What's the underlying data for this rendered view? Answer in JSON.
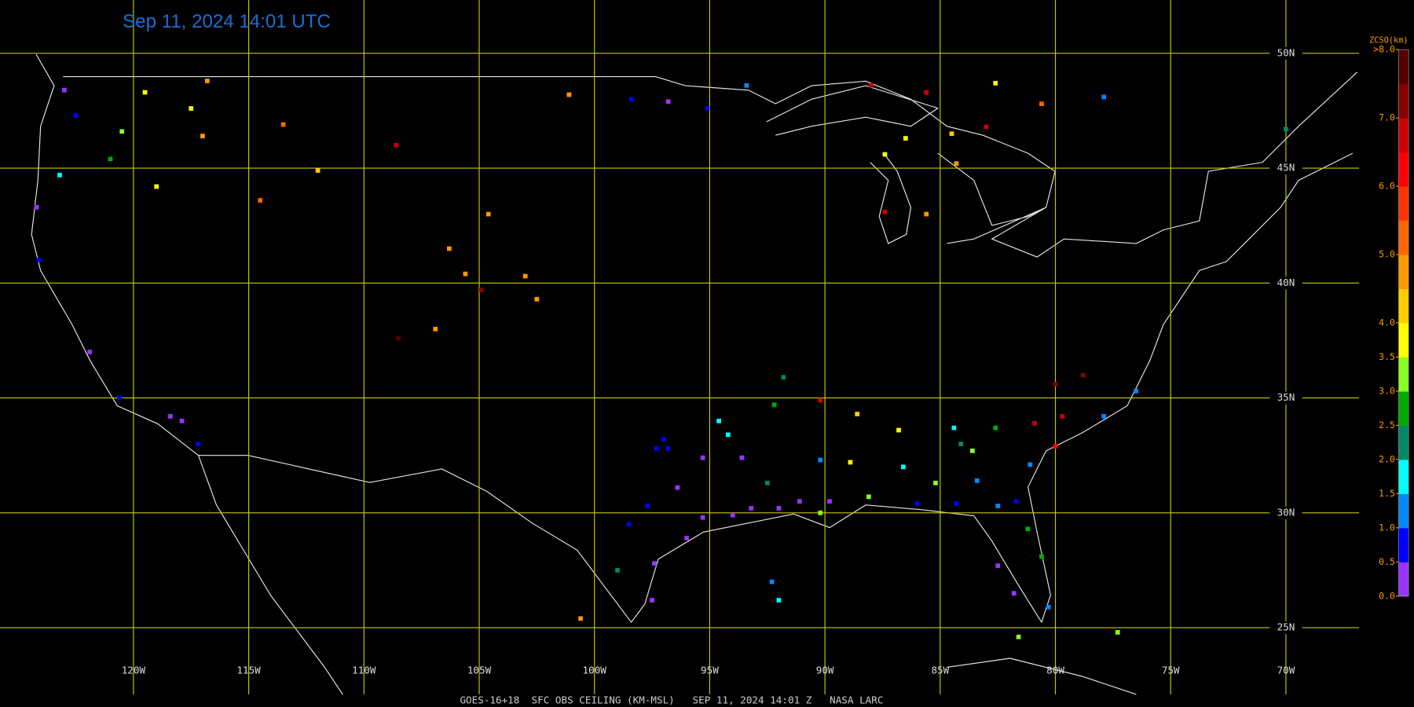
{
  "title": "Sep 11, 2024 14:01 UTC",
  "footer": "GOES-16+18  SFC OBS CEILING (KM-MSL)   SEP 11, 2024 14:01 Z   NASA LARC",
  "map": {
    "lonlim": [
      -125.79,
      -66.83
    ],
    "latlim": [
      21.55,
      52.32
    ],
    "lon_lines": [
      {
        "value": -120,
        "label": "120W"
      },
      {
        "value": -115,
        "label": "115W"
      },
      {
        "value": -110,
        "label": "110W"
      },
      {
        "value": -105,
        "label": "105W"
      },
      {
        "value": -100,
        "label": "100W"
      },
      {
        "value": -95,
        "label": "95W"
      },
      {
        "value": -90,
        "label": "90W"
      },
      {
        "value": -85,
        "label": "85W"
      },
      {
        "value": -80,
        "label": "80W"
      },
      {
        "value": -75,
        "label": "75W"
      },
      {
        "value": -70,
        "label": "70W"
      }
    ],
    "lat_lines": [
      {
        "value": 50,
        "label": "50N"
      },
      {
        "value": 45,
        "label": "45N"
      },
      {
        "value": 40,
        "label": "40N"
      },
      {
        "value": 35,
        "label": "35N"
      },
      {
        "value": 30,
        "label": "30N"
      },
      {
        "value": 25,
        "label": "25N"
      }
    ],
    "grid_color": "#c8c800"
  },
  "legend": {
    "title": "ZCSO(km)",
    "lim": [
      0,
      8
    ],
    "ticks": [
      {
        "value": 0,
        "label": "0.0"
      },
      {
        "value": 0.5,
        "label": "0.5"
      },
      {
        "value": 1,
        "label": "1.0"
      },
      {
        "value": 1.5,
        "label": "1.5"
      },
      {
        "value": 2,
        "label": "2.0"
      },
      {
        "value": 2.5,
        "label": "2.5"
      },
      {
        "value": 3,
        "label": "3.0"
      },
      {
        "value": 3.5,
        "label": "3.5"
      },
      {
        "value": 4,
        "label": "4.0"
      },
      {
        "value": 5,
        "label": "5.0"
      },
      {
        "value": 6,
        "label": "6.0"
      },
      {
        "value": 7,
        "label": "7.0"
      },
      {
        "value": 8,
        "label": ">8.0"
      }
    ],
    "colors": [
      "#9933ff",
      "#0000ff",
      "#0088ff",
      "#00ffff",
      "#008866",
      "#00aa00",
      "#88ff22",
      "#ffff00",
      "#ffcc00",
      "#ff9900",
      "#ff6600",
      "#ff3300",
      "#ff0000",
      "#cc0000",
      "#880000",
      "#550000"
    ]
  },
  "stations": [
    [
      -123.0,
      48.4,
      0.3
    ],
    [
      -122.5,
      47.3,
      0.8
    ],
    [
      -123.2,
      44.7,
      1.7
    ],
    [
      -120.5,
      46.6,
      3.2
    ],
    [
      -119.5,
      48.3,
      3.7
    ],
    [
      -117.5,
      47.6,
      3.8
    ],
    [
      -116.8,
      48.8,
      4.6
    ],
    [
      -121.0,
      45.4,
      2.8
    ],
    [
      -119.0,
      44.2,
      3.8
    ],
    [
      -124.2,
      43.3,
      0.3
    ],
    [
      -124.1,
      41.0,
      0.8
    ],
    [
      -117.0,
      46.4,
      4.7
    ],
    [
      -113.5,
      46.9,
      5.2
    ],
    [
      -114.5,
      43.6,
      5.2
    ],
    [
      -112.0,
      44.9,
      4.3
    ],
    [
      -108.6,
      46.0,
      6.7
    ],
    [
      -104.6,
      43.0,
      4.7
    ],
    [
      -106.3,
      41.5,
      4.7
    ],
    [
      -105.6,
      40.4,
      4.7
    ],
    [
      -106.9,
      38.0,
      4.6
    ],
    [
      -104.9,
      39.7,
      7.3
    ],
    [
      -103.0,
      40.3,
      4.6
    ],
    [
      -102.5,
      39.3,
      4.6
    ],
    [
      -108.5,
      37.6,
      7.8
    ],
    [
      -101.1,
      48.2,
      4.7
    ],
    [
      -98.4,
      48.0,
      0.8
    ],
    [
      -96.8,
      47.9,
      0.3
    ],
    [
      -95.1,
      47.6,
      0.8
    ],
    [
      -93.4,
      48.6,
      1.3
    ],
    [
      -88.0,
      48.6,
      6.8
    ],
    [
      -85.6,
      48.3,
      6.8
    ],
    [
      -84.5,
      46.5,
      4.3
    ],
    [
      -86.5,
      46.3,
      3.7
    ],
    [
      -84.3,
      45.2,
      4.6
    ],
    [
      -83.0,
      46.8,
      6.8
    ],
    [
      -80.6,
      47.8,
      5.3
    ],
    [
      -77.9,
      48.1,
      1.3
    ],
    [
      -87.4,
      43.1,
      6.8
    ],
    [
      -85.6,
      43.0,
      4.6
    ],
    [
      -87.4,
      45.6,
      3.7
    ],
    [
      -82.6,
      48.7,
      3.8
    ],
    [
      -70.0,
      46.7,
      2.3
    ],
    [
      -121.9,
      37.0,
      0.3
    ],
    [
      -120.6,
      35.0,
      0.8
    ],
    [
      -117.9,
      34.0,
      0.3
    ],
    [
      -117.2,
      33.0,
      0.8
    ],
    [
      -118.4,
      34.2,
      0.3
    ],
    [
      -97.3,
      32.8,
      0.8
    ],
    [
      -96.8,
      32.8,
      0.7
    ],
    [
      -97.0,
      33.2,
      0.8
    ],
    [
      -95.3,
      32.4,
      0.3
    ],
    [
      -96.4,
      31.1,
      0.3
    ],
    [
      -97.7,
      30.3,
      0.8
    ],
    [
      -98.5,
      29.5,
      0.8
    ],
    [
      -95.3,
      29.8,
      0.3
    ],
    [
      -94.0,
      29.9,
      0.3
    ],
    [
      -96.0,
      28.9,
      0.3
    ],
    [
      -97.4,
      27.8,
      0.3
    ],
    [
      -97.5,
      26.2,
      0.3
    ],
    [
      -99.0,
      27.5,
      2.3
    ],
    [
      -94.6,
      34.0,
      1.7
    ],
    [
      -94.2,
      33.4,
      1.7
    ],
    [
      -93.6,
      32.4,
      0.3
    ],
    [
      -92.0,
      30.2,
      0.3
    ],
    [
      -91.1,
      30.5,
      0.3
    ],
    [
      -90.2,
      30.0,
      3.3
    ],
    [
      -89.8,
      30.5,
      0.3
    ],
    [
      -90.2,
      32.3,
      1.3
    ],
    [
      -88.9,
      32.2,
      3.7
    ],
    [
      -88.1,
      30.7,
      3.2
    ],
    [
      -86.6,
      32.0,
      1.7
    ],
    [
      -86.0,
      30.4,
      0.8
    ],
    [
      -85.2,
      31.3,
      3.3
    ],
    [
      -84.3,
      30.4,
      0.8
    ],
    [
      -83.4,
      31.4,
      1.3
    ],
    [
      -82.5,
      30.3,
      1.3
    ],
    [
      -81.7,
      30.5,
      0.8
    ],
    [
      -81.1,
      32.1,
      1.3
    ],
    [
      -81.2,
      29.3,
      2.7
    ],
    [
      -82.5,
      27.7,
      0.3
    ],
    [
      -81.8,
      26.5,
      0.3
    ],
    [
      -80.6,
      28.1,
      2.7
    ],
    [
      -80.3,
      25.9,
      1.3
    ],
    [
      -81.6,
      24.6,
      3.2
    ],
    [
      -77.3,
      24.8,
      3.3
    ],
    [
      -80.9,
      33.9,
      6.7
    ],
    [
      -80.0,
      32.9,
      6.3
    ],
    [
      -79.7,
      34.2,
      6.7
    ],
    [
      -77.9,
      34.2,
      1.3
    ],
    [
      -76.5,
      35.3,
      1.3
    ],
    [
      -78.8,
      36.0,
      7.2
    ],
    [
      -80.0,
      35.6,
      7.3
    ],
    [
      -82.6,
      33.7,
      2.7
    ],
    [
      -84.4,
      33.7,
      1.7
    ],
    [
      -83.6,
      32.7,
      3.3
    ],
    [
      -84.1,
      33.0,
      2.3
    ],
    [
      -86.8,
      33.6,
      3.7
    ],
    [
      -88.6,
      34.3,
      4.3
    ],
    [
      -90.2,
      34.9,
      6.5
    ],
    [
      -92.2,
      34.7,
      2.7
    ],
    [
      -91.8,
      35.9,
      2.3
    ],
    [
      -92.5,
      31.3,
      2.3
    ],
    [
      -93.2,
      30.2,
      0.3
    ],
    [
      -92.3,
      27.0,
      1.3
    ],
    [
      -92.0,
      26.2,
      1.7
    ],
    [
      -100.6,
      25.4,
      4.6
    ]
  ]
}
